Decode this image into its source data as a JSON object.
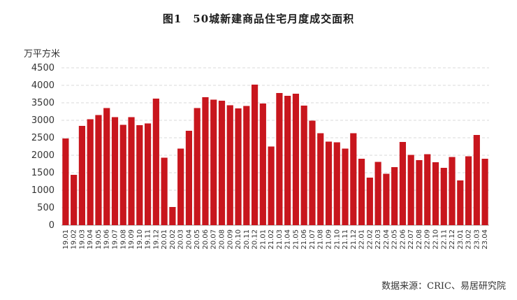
{
  "chart_data": {
    "type": "bar",
    "title": "图1　50城新建商品住宅月度成交面积",
    "ylabel": "万平方米",
    "source": "数据来源：CRIC、易居研究院",
    "ylim": [
      0,
      4500
    ],
    "yticks": [
      0,
      500,
      1000,
      1500,
      2000,
      2500,
      3000,
      3500,
      4000,
      4500
    ],
    "grid": true,
    "bar_color": "#c8161d",
    "categories": [
      "19.01",
      "19.02",
      "19.03",
      "19.04",
      "19.05",
      "19.06",
      "19.07",
      "19.08",
      "19.09",
      "19.10",
      "19.11",
      "19.12",
      "20.01",
      "20.02",
      "20.03",
      "20.04",
      "20.05",
      "20.06",
      "20.07",
      "20.08",
      "20.09",
      "20.10",
      "20.11",
      "20.12",
      "21.01",
      "21.02",
      "21.03",
      "21.04",
      "21.05",
      "21.06",
      "21.07",
      "21.08",
      "21.09",
      "21.10",
      "21.11",
      "21.12",
      "22.01",
      "22.02",
      "22.03",
      "22.04",
      "22.05",
      "22.06",
      "22.07",
      "22.08",
      "22.09",
      "22.10",
      "22.11",
      "22.12",
      "23.01",
      "23.02",
      "23.03",
      "23.04"
    ],
    "values": [
      2480,
      1440,
      2840,
      3030,
      3150,
      3350,
      3090,
      2870,
      3090,
      2860,
      2910,
      3620,
      1930,
      520,
      2190,
      2700,
      3350,
      3660,
      3590,
      3560,
      3430,
      3340,
      3410,
      4020,
      3480,
      2250,
      3780,
      3700,
      3760,
      3420,
      2990,
      2630,
      2390,
      2370,
      2190,
      2630,
      1900,
      1360,
      1810,
      1470,
      1660,
      2380,
      2010,
      1860,
      2030,
      1800,
      1640,
      1950,
      1280,
      1970,
      2580,
      1900
    ]
  }
}
